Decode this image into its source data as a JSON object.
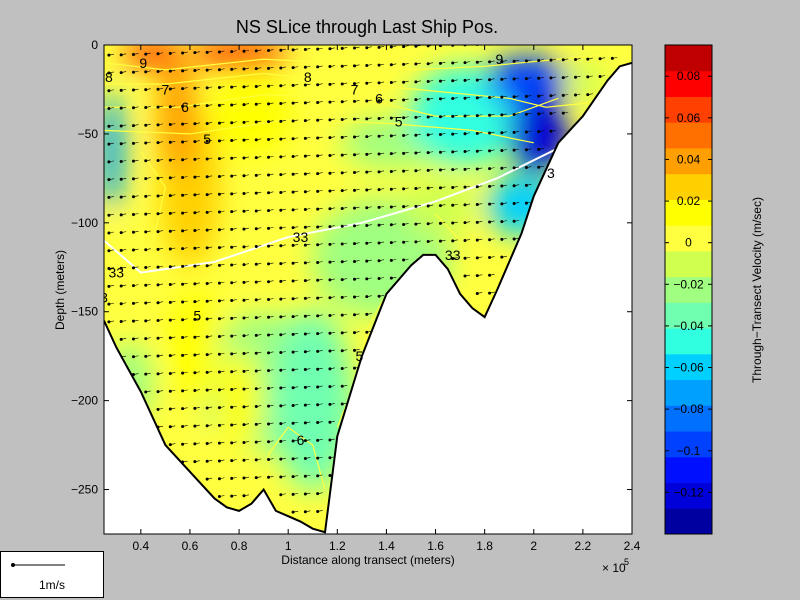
{
  "chart_data": {
    "type": "heatmap",
    "title": "NS SLice through Last Ship Pos.",
    "xlabel": "Distance along transect (meters)",
    "ylabel": "Depth (meters)",
    "x_exponent_label": "× 10",
    "x_exponent": "5",
    "xlim": [
      0.25,
      2.4
    ],
    "ylim": [
      -275,
      0
    ],
    "x_ticks": [
      "0.4",
      "0.6",
      "0.8",
      "1",
      "1.2",
      "1.4",
      "1.6",
      "1.8",
      "2",
      "2.2",
      "2.4"
    ],
    "x_tick_values": [
      0.4,
      0.6,
      0.8,
      1.0,
      1.2,
      1.4,
      1.6,
      1.8,
      2.0,
      2.2,
      2.4
    ],
    "y_ticks": [
      "0",
      "−50",
      "−100",
      "−150",
      "−200",
      "−250"
    ],
    "y_tick_values": [
      0,
      -50,
      -100,
      -150,
      -200,
      -250
    ],
    "colorbar": {
      "label": "Through−Transect Velocity (m/sec)",
      "range": [
        -0.14,
        0.095
      ],
      "ticks": [
        "0.08",
        "0.06",
        "0.04",
        "0.02",
        "0",
        "−0.02",
        "−0.04",
        "−0.06",
        "−0.08",
        "−0.1",
        "−0.12"
      ],
      "tick_values": [
        0.08,
        0.06,
        0.04,
        0.02,
        0,
        -0.02,
        -0.04,
        -0.06,
        -0.08,
        -0.1,
        -0.12
      ],
      "colors": [
        "#0000a0",
        "#0000d8",
        "#0010ff",
        "#0040ff",
        "#0070ff",
        "#00a0ff",
        "#00d0ff",
        "#30ffe0",
        "#70ffb0",
        "#a0ff80",
        "#d0ff50",
        "#ffff40",
        "#ffff00",
        "#ffd000",
        "#ffa000",
        "#ff7000",
        "#ff4000",
        "#ff0000",
        "#c00000"
      ]
    },
    "bottom_profile": [
      [
        0.25,
        -155
      ],
      [
        0.3,
        -170
      ],
      [
        0.4,
        -195
      ],
      [
        0.5,
        -225
      ],
      [
        0.6,
        -240
      ],
      [
        0.7,
        -255
      ],
      [
        0.75,
        -260
      ],
      [
        0.8,
        -262
      ],
      [
        0.85,
        -258
      ],
      [
        0.9,
        -250
      ],
      [
        0.95,
        -262
      ],
      [
        1.0,
        -265
      ],
      [
        1.05,
        -268
      ],
      [
        1.1,
        -272
      ],
      [
        1.15,
        -274
      ],
      [
        1.2,
        -220
      ],
      [
        1.3,
        -175
      ],
      [
        1.4,
        -140
      ],
      [
        1.5,
        -124
      ],
      [
        1.55,
        -118
      ],
      [
        1.6,
        -118
      ],
      [
        1.65,
        -126
      ],
      [
        1.7,
        -140
      ],
      [
        1.75,
        -148
      ],
      [
        1.8,
        -153
      ],
      [
        1.85,
        -138
      ],
      [
        1.9,
        -122
      ],
      [
        1.95,
        -106
      ],
      [
        2.0,
        -85
      ],
      [
        2.1,
        -55
      ],
      [
        2.2,
        -40
      ],
      [
        2.3,
        -20
      ],
      [
        2.35,
        -12
      ],
      [
        2.4,
        -10
      ]
    ],
    "contour_labels": [
      {
        "text": "8",
        "x": 0.27,
        "y": -18
      },
      {
        "text": "9",
        "x": 0.41,
        "y": -10
      },
      {
        "text": "7",
        "x": 0.5,
        "y": -25
      },
      {
        "text": "6",
        "x": 0.58,
        "y": -35
      },
      {
        "text": "5",
        "x": 0.67,
        "y": -53
      },
      {
        "text": "8",
        "x": 1.08,
        "y": -18
      },
      {
        "text": "7",
        "x": 1.27,
        "y": -25
      },
      {
        "text": "6",
        "x": 1.37,
        "y": -30
      },
      {
        "text": "5",
        "x": 1.45,
        "y": -43
      },
      {
        "text": "33",
        "x": 1.05,
        "y": -108
      },
      {
        "text": "33",
        "x": 0.3,
        "y": -128
      },
      {
        "text": "33",
        "x": 1.67,
        "y": -118
      },
      {
        "text": "3",
        "x": 0.25,
        "y": -142
      },
      {
        "text": "5",
        "x": 0.63,
        "y": -152
      },
      {
        "text": "5",
        "x": 1.29,
        "y": -175
      },
      {
        "text": "6",
        "x": 1.05,
        "y": -222
      },
      {
        "text": "3",
        "x": 2.07,
        "y": -72
      },
      {
        "text": "9",
        "x": 1.86,
        "y": -8
      }
    ],
    "grid": false,
    "colormap": "jet",
    "overlay": "ship velocity vectors (scale 1m/s) at each grid node"
  },
  "legend": {
    "scale_label": "1m/s"
  }
}
